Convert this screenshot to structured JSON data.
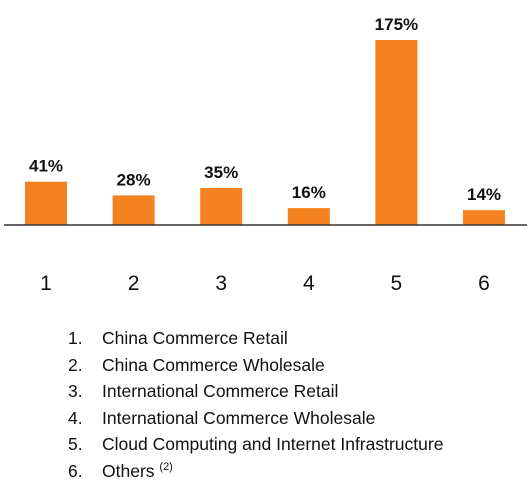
{
  "chart_data": {
    "type": "bar",
    "categories": [
      "1",
      "2",
      "3",
      "4",
      "5",
      "6"
    ],
    "values": [
      41,
      28,
      35,
      16,
      175,
      14
    ],
    "value_labels": [
      "41%",
      "28%",
      "35%",
      "16%",
      "175%",
      "14%"
    ],
    "unit": "%",
    "ylim": [
      0,
      175
    ],
    "bar_color": "#f58220",
    "grid": false,
    "legend_entries": [
      {
        "number": "1.",
        "label": "China Commerce Retail",
        "note": ""
      },
      {
        "number": "2.",
        "label": "China Commerce Wholesale",
        "note": ""
      },
      {
        "number": "3.",
        "label": "International Commerce Retail",
        "note": ""
      },
      {
        "number": "4.",
        "label": "International Commerce Wholesale",
        "note": ""
      },
      {
        "number": "5.",
        "label": "Cloud Computing and Internet Infrastructure",
        "note": ""
      },
      {
        "number": "6.",
        "label": "Others",
        "note": "(2)"
      }
    ]
  }
}
